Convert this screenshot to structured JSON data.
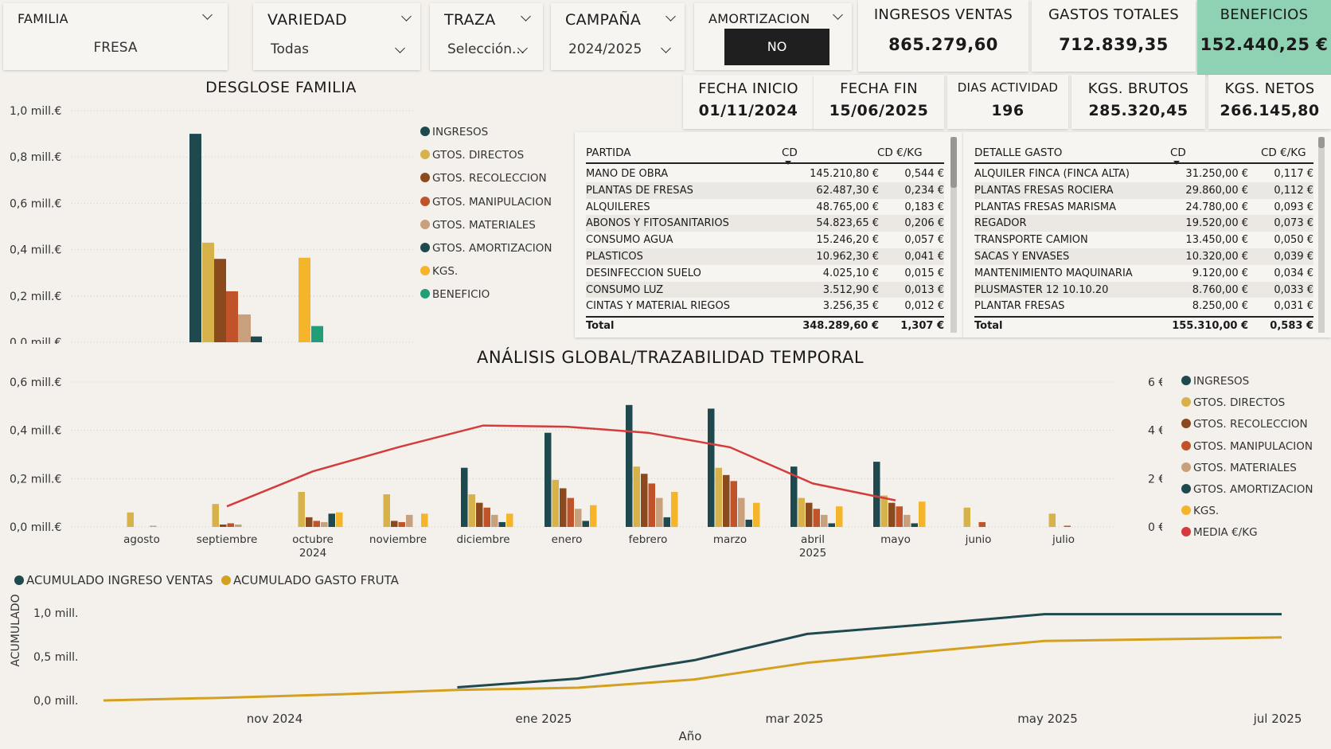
{
  "slicers": {
    "familia": {
      "title": "FAMILIA",
      "value": "FRESA"
    },
    "variedad": {
      "title": "VARIEDAD",
      "value": "Todas"
    },
    "traza": {
      "title": "TRAZA",
      "value": "Selección..."
    },
    "campana": {
      "title": "CAMPAÑA",
      "value": "2024/2025"
    },
    "amortizacion": {
      "title": "AMORTIZACION",
      "value": "NO"
    }
  },
  "kpis": {
    "ingresos": {
      "title": "INGRESOS VENTAS",
      "value": "865.279,60"
    },
    "gastos": {
      "title": "GASTOS TOTALES",
      "value": "712.839,35"
    },
    "beneficios": {
      "title": "BENEFICIOS",
      "value": "152.440,25 €"
    },
    "fecha_inicio": {
      "title": "FECHA INICIO",
      "value": "01/11/2024"
    },
    "fecha_fin": {
      "title": "FECHA FIN",
      "value": "15/06/2025"
    },
    "dias": {
      "title": "DIAS ACTIVIDAD",
      "value": "196"
    },
    "kgs_brutos": {
      "title": "KGS. BRUTOS",
      "value": "285.320,45"
    },
    "kgs_netos": {
      "title": "KGS. NETOS",
      "value": "266.145,80"
    }
  },
  "colors": {
    "ingresos": "#1e4a4f",
    "directos": "#d7b24a",
    "recoleccion": "#8b4a1e",
    "manipulacion": "#c1532a",
    "materiales": "#c9a07c",
    "amortizacion": "#1e4a4f",
    "kgs": "#f5b52a",
    "beneficio": "#1f9e78",
    "media": "#d43c3c",
    "acum_ingreso": "#1e4a4f",
    "acum_gasto": "#d4a020",
    "beneficios_kpi_bg": "#8fd1b3"
  },
  "legend_labels": [
    "INGRESOS",
    "GTOS. DIRECTOS",
    "GTOS. RECOLECCION",
    "GTOS. MANIPULACION",
    "GTOS. MATERIALES",
    "GTOS. AMORTIZACION",
    "KGS.",
    "BENEFICIO",
    "MEDIA €/KG"
  ],
  "table_partida": {
    "headers": [
      "PARTIDA",
      "CD",
      "CD €/KG"
    ],
    "rows": [
      [
        "MANO DE OBRA",
        "145.210,80 €",
        "0,544 €"
      ],
      [
        "PLANTAS DE FRESAS",
        "62.487,30 €",
        "0,234 €"
      ],
      [
        "ALQUILERES",
        "48.765,00 €",
        "0,183 €"
      ],
      [
        "ABONOS Y FITOSANITARIOS",
        "54.823,65 €",
        "0,206 €"
      ],
      [
        "CONSUMO AGUA",
        "15.246,20 €",
        "0,057 €"
      ],
      [
        "PLASTICOS",
        "10.962,30 €",
        "0,041 €"
      ],
      [
        "DESINFECCION SUELO",
        "4.025,10 €",
        "0,015 €"
      ],
      [
        "CONSUMO LUZ",
        "3.512,90 €",
        "0,013 €"
      ],
      [
        "CINTAS Y MATERIAL RIEGOS",
        "3.256,35 €",
        "0,012 €"
      ]
    ],
    "total": [
      "Total",
      "348.289,60 €",
      "1,307 €"
    ]
  },
  "table_detalle": {
    "headers": [
      "DETALLE GASTO",
      "CD",
      "CD €/KG"
    ],
    "rows": [
      [
        "ALQUILER FINCA (FINCA ALTA)",
        "31.250,00 €",
        "0,117 €"
      ],
      [
        "PLANTAS FRESAS ROCIERA",
        "29.860,00 €",
        "0,112 €"
      ],
      [
        "PLANTAS FRESAS MARISMA",
        "24.780,00 €",
        "0,093 €"
      ],
      [
        "REGADOR",
        "19.520,00 €",
        "0,073 €"
      ],
      [
        "TRANSPORTE CAMION",
        "13.450,00 €",
        "0,050 €"
      ],
      [
        "SACAS Y ENVASES",
        "10.320,00 €",
        "0,039 €"
      ],
      [
        "MANTENIMIENTO MAQUINARIA",
        "9.120,00 €",
        "0,034 €"
      ],
      [
        "PLUSMASTER 12 10.10.20",
        "8.760,00 €",
        "0,033 €"
      ],
      [
        "PLANTAR FRESAS",
        "8.250,00 €",
        "0,031 €"
      ]
    ],
    "total": [
      "Total",
      "155.310,00 €",
      "0,583 €"
    ]
  },
  "chart_data": [
    {
      "type": "bar",
      "title": "DESGLOSE FAMILIA",
      "y_ticks": [
        "0,0 mill.€",
        "0,2 mill.€",
        "0,4 mill.€",
        "0,6 mill.€",
        "0,8 mill.€",
        "1,0 mill.€"
      ],
      "ylim": [
        0,
        1.0
      ],
      "categories": [
        "INGRESOS",
        "GTOS. DIRECTOS",
        "GTOS. RECOLECCION",
        "GTOS. MANIPULACION",
        "GTOS. MATERIALES",
        "GTOS. AMORTIZACION",
        "KGS.",
        "BENEFICIO"
      ],
      "values": [
        0.9,
        0.43,
        0.36,
        0.22,
        0.12,
        0.025,
        0.365,
        0.07
      ],
      "legend": "right"
    },
    {
      "type": "bar",
      "title": "ANÁLISIS GLOBAL/TRAZABILIDAD TEMPORAL",
      "categories": [
        "agosto",
        "septiembre",
        "octubre",
        "noviembre",
        "diciembre",
        "enero",
        "febrero",
        "marzo",
        "abril",
        "mayo",
        "junio",
        "julio"
      ],
      "year_labels": {
        "octubre": "2024",
        "abril": "2025"
      },
      "y_ticks": [
        "0,0 mill.€",
        "0,2 mill.€",
        "0,4 mill.€",
        "0,6 mill.€"
      ],
      "ylim": [
        0,
        0.6
      ],
      "y2_ticks": [
        "0 €",
        "2 €",
        "4 €",
        "6 €"
      ],
      "y2lim": [
        0,
        6
      ],
      "legend": "right",
      "series": [
        {
          "name": "INGRESOS",
          "values": [
            0,
            0,
            0,
            0,
            0.245,
            0.39,
            0.505,
            0.49,
            0.25,
            0.27,
            0,
            0
          ]
        },
        {
          "name": "GTOS. DIRECTOS",
          "values": [
            0.06,
            0.095,
            0.145,
            0.135,
            0.135,
            0.195,
            0.25,
            0.245,
            0.12,
            0.13,
            0.08,
            0.055
          ]
        },
        {
          "name": "GTOS. RECOLECCION",
          "values": [
            0,
            0.01,
            0.04,
            0.025,
            0.1,
            0.16,
            0.22,
            0.215,
            0.1,
            0.1,
            0,
            0
          ]
        },
        {
          "name": "GTOS. MANIPULACION",
          "values": [
            0,
            0.015,
            0.025,
            0.02,
            0.08,
            0.12,
            0.18,
            0.19,
            0.075,
            0.085,
            0.02,
            0.005
          ]
        },
        {
          "name": "GTOS. MATERIALES",
          "values": [
            0.005,
            0.01,
            0.02,
            0.05,
            0.05,
            0.075,
            0.12,
            0.12,
            0.05,
            0.05,
            0,
            0
          ]
        },
        {
          "name": "GTOS. AMORTIZACION",
          "values": [
            0,
            0,
            0.055,
            0,
            0.02,
            0.025,
            0.04,
            0.03,
            0.015,
            0.015,
            0,
            0
          ]
        },
        {
          "name": "KGS.",
          "values": [
            0,
            0,
            0.06,
            0.055,
            0.055,
            0.09,
            0.145,
            0.1,
            0.085,
            0.105,
            0,
            0
          ]
        },
        {
          "name": "MEDIA €/KG",
          "axis": "y2",
          "values": [
            null,
            0.85,
            2.3,
            3.3,
            4.2,
            4.15,
            3.9,
            3.3,
            1.8,
            1.1,
            null,
            null
          ]
        }
      ]
    },
    {
      "type": "line",
      "ylabel": "ACUMULADO",
      "xlabel": "Año",
      "x_ticks": [
        "nov 2024",
        "ene 2025",
        "mar 2025",
        "may 2025",
        "jul 2025"
      ],
      "y_ticks": [
        "0,0 mill.",
        "0,5 mill.",
        "1,0 mill."
      ],
      "ylim": [
        0,
        1.0
      ],
      "legend": "top-left",
      "series": [
        {
          "name": "ACUMULADO INGRESO VENTAS",
          "x": [
            "2024-12-29",
            "2025-01-29",
            "2025-02-28",
            "2025-03-29",
            "2025-04-29",
            "2025-05-29",
            "2025-06-29",
            "2025-07-29"
          ],
          "values": [
            0.15,
            0.25,
            0.46,
            0.76,
            0.87,
            0.985,
            0.985,
            0.985
          ]
        },
        {
          "name": "ACUMULADO GASTO FRUTA",
          "x": [
            "2024-09-29",
            "2024-10-29",
            "2024-11-29",
            "2024-12-29",
            "2025-01-29",
            "2025-02-28",
            "2025-03-29",
            "2025-04-29",
            "2025-05-29",
            "2025-06-29",
            "2025-07-29"
          ],
          "values": [
            0.0,
            0.03,
            0.07,
            0.12,
            0.145,
            0.24,
            0.43,
            0.56,
            0.68,
            0.7,
            0.72
          ]
        }
      ]
    }
  ]
}
